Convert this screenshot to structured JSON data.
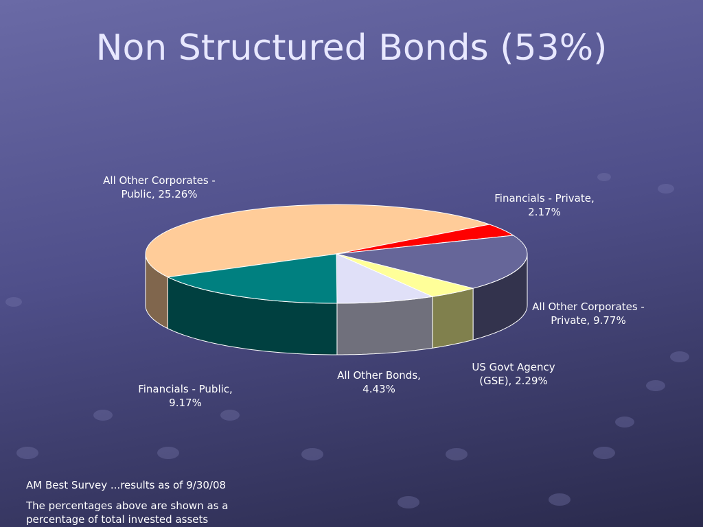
{
  "chart_data": {
    "type": "pie3d",
    "title": "Non Structured Bonds (53%)",
    "values": [
      25.26,
      2.17,
      9.77,
      2.29,
      4.43,
      9.17
    ],
    "value_labels": [
      "All Other Corporates - Public, 25.26%",
      "Financials - Private, 2.17%",
      "All Other Corporates - Private, 9.77%",
      "US Govt Agency (GSE), 2.29%",
      "All Other Bonds, 4.43%",
      "Financials - Public, 9.17%"
    ],
    "colors": [
      "#FFCC99",
      "#FF0000",
      "#666699",
      "#FFFF99",
      "#E0E0F8",
      "#008080"
    ],
    "notes": [
      "AM Best Survey ...results as of 9/30/08",
      "The percentages above are shown as a percentage of total invested assets"
    ]
  }
}
